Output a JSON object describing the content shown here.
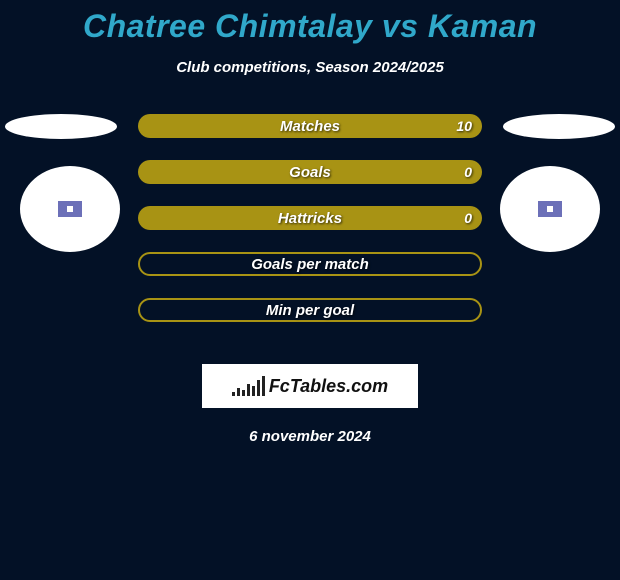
{
  "title": "Chatree Chimtalay vs Kaman",
  "subtitle": "Club competitions, Season 2024/2025",
  "date": "6 november 2024",
  "logo_text": "FcTables.com",
  "colors": {
    "background": "#031126",
    "title": "#30a8ca",
    "text": "#ffffff",
    "bar_fill": "#a89314",
    "logo_bg": "#ffffff"
  },
  "stats": [
    {
      "label": "Matches",
      "value": "10",
      "filled": true
    },
    {
      "label": "Goals",
      "value": "0",
      "filled": true
    },
    {
      "label": "Hattricks",
      "value": "0",
      "filled": true
    },
    {
      "label": "Goals per match",
      "value": "",
      "filled": false
    },
    {
      "label": "Min per goal",
      "value": "",
      "filled": false
    }
  ],
  "logo_bar_heights": [
    4,
    8,
    6,
    12,
    10,
    16,
    20
  ]
}
